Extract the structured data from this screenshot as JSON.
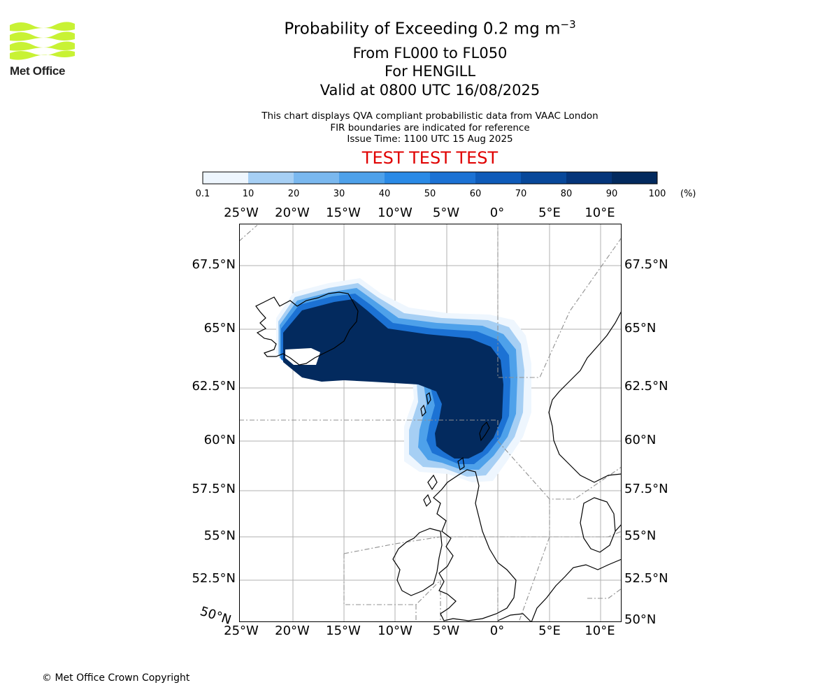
{
  "header": {
    "title_prefix": "Probability of Exceeding 0.2 mg m",
    "title_exponent": "−3",
    "level_range": "From FL000 to FL050",
    "volcano": "For HENGILL",
    "valid_time": "Valid at 0800 UTC 16/08/2025",
    "note_1": "This chart displays QVA compliant probabilistic data from VAAC London",
    "note_2": "FIR boundaries are indicated for reference",
    "issue_time": "Issue Time: 1100 UTC 15 Aug 2025",
    "test_banner": "TEST TEST TEST"
  },
  "logo": {
    "text": "Met Office",
    "color": "#c8f234"
  },
  "colorbar": {
    "ticks": [
      "0.1",
      "10",
      "20",
      "30",
      "40",
      "50",
      "60",
      "70",
      "80",
      "90",
      "100"
    ],
    "unit": "(%)",
    "colors": [
      "#eef6fe",
      "#c8e1f8",
      "#a6cff4",
      "#7ab8ef",
      "#4ea1ea",
      "#2a8ae6",
      "#1c72d4",
      "#0f5bb9",
      "#08489a",
      "#05357a",
      "#032a5e"
    ]
  },
  "axes": {
    "lon_labels": [
      "25°W",
      "20°W",
      "15°W",
      "10°W",
      "5°W",
      "0°",
      "5°E",
      "10°E"
    ],
    "lat_labels_left": [
      "67.5°N",
      "65°N",
      "62.5°N",
      "60°N",
      "57.5°N",
      "55°N",
      "52.5°N"
    ],
    "lat_labels_right": [
      "67.5°N",
      "65°N",
      "62.5°N",
      "60°N",
      "57.5°N",
      "55°N",
      "52.5°N",
      "50°N"
    ],
    "corner_label": "50°N"
  },
  "footer": {
    "copyright": "© Met Office Crown Copyright"
  }
}
